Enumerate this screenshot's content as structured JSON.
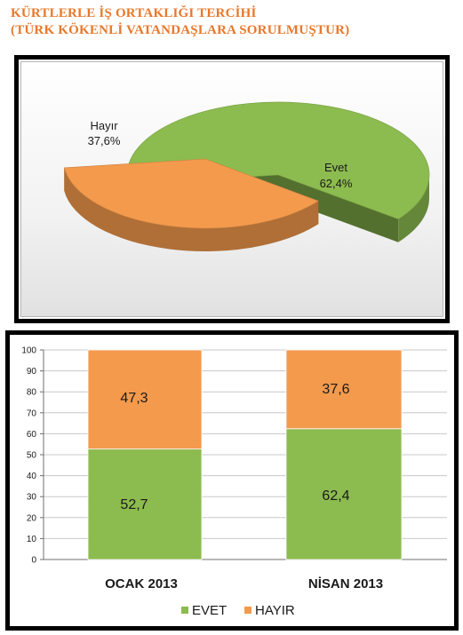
{
  "title": {
    "line1": "KÜRTLERLE İŞ ORTAKLIĞI TERCİHİ",
    "line2": "(TÜRK KÖKENLİ VATANDAŞLARA SORULMUŞTUR)"
  },
  "colors": {
    "evet": "#8cbb4f",
    "hayir": "#f39a4d",
    "title": "#e8782b"
  },
  "chart_data": [
    {
      "type": "pie",
      "labels": [
        "Evet",
        "Hayır"
      ],
      "values": [
        62.4,
        37.6
      ],
      "value_labels": [
        "62,4%",
        "37,6%"
      ],
      "exploded": "Hayır",
      "style": "3d"
    },
    {
      "type": "bar",
      "stacked": true,
      "categories": [
        "OCAK 2013",
        "NİSAN 2013"
      ],
      "series": [
        {
          "name": "EVET",
          "values": [
            52.7,
            62.4
          ],
          "value_labels": [
            "52,7",
            "62,4"
          ]
        },
        {
          "name": "HAYIR",
          "values": [
            47.3,
            37.6
          ],
          "value_labels": [
            "47,3",
            "37,6"
          ]
        }
      ],
      "ylim": [
        0,
        100
      ],
      "yticks": [
        "0",
        "10",
        "20",
        "30",
        "40",
        "50",
        "60",
        "70",
        "80",
        "90",
        "100"
      ],
      "grid": true,
      "legend": "bottom"
    }
  ]
}
